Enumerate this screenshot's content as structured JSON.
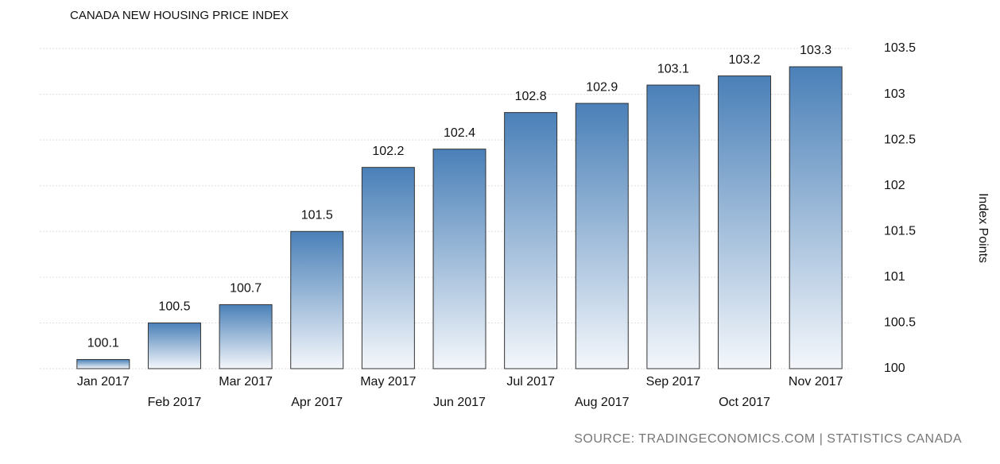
{
  "chart_data": {
    "type": "bar",
    "title": "CANADA NEW HOUSING PRICE INDEX",
    "y_axis_label": "Index Points",
    "source": "SOURCE: TRADINGECONOMICS.COM | STATISTICS CANADA",
    "categories": [
      "Jan 2017",
      "Feb 2017",
      "Mar 2017",
      "Apr 2017",
      "May 2017",
      "Jun 2017",
      "Jul 2017",
      "Aug 2017",
      "Sep 2017",
      "Oct 2017",
      "Nov 2017"
    ],
    "values": [
      100.1,
      100.5,
      100.7,
      101.5,
      102.2,
      102.4,
      102.8,
      102.9,
      103.1,
      103.2,
      103.3
    ],
    "color": "#4a80b8",
    "ylim": [
      100,
      103.5
    ],
    "yticks": [
      100,
      100.5,
      101,
      101.5,
      102,
      102.5,
      103,
      103.5
    ],
    "grid": true
  }
}
